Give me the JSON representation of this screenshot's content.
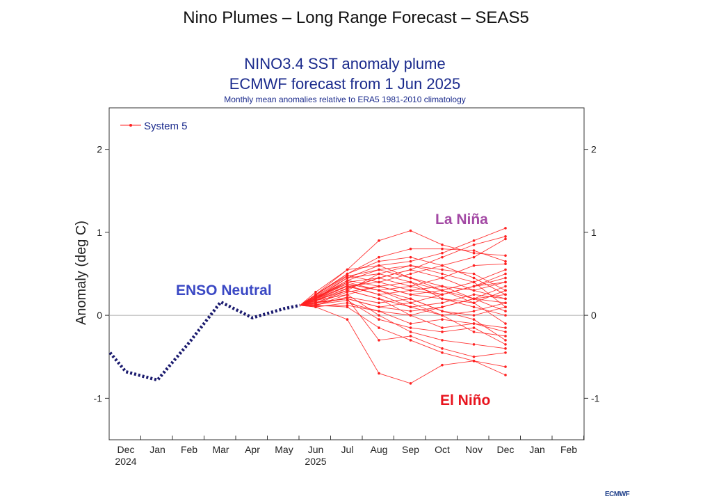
{
  "page": {
    "title": "Nino Plumes – Long Range Forecast – SEAS5",
    "logo": "ECMWF"
  },
  "chart_data": {
    "type": "line",
    "title": "NINO3.4 SST anomaly plume",
    "subtitle": "ECMWF forecast from 1 Jun 2025",
    "subsubtitle": "Monthly mean anomalies relative to ERA5 1981-2010 climatology",
    "ylabel": "Anomaly (deg C)",
    "ylim": [
      -1.5,
      2.5
    ],
    "yticks": [
      -1,
      0,
      1,
      2
    ],
    "ytick_labels": [
      "-1",
      "0",
      "1",
      "2"
    ],
    "x_categories": [
      "Dec",
      "Jan",
      "Feb",
      "Mar",
      "Apr",
      "May",
      "Jun",
      "Jul",
      "Aug",
      "Sep",
      "Oct",
      "Nov",
      "Dec",
      "Jan",
      "Feb"
    ],
    "x_years": [
      {
        "label": "2024",
        "at": "Dec"
      },
      {
        "label": "2025",
        "at": "Jun"
      }
    ],
    "legend": {
      "label": "System 5",
      "position": "top-left",
      "color": "#ff2020"
    },
    "observed": {
      "color": "#1a1a6e",
      "x": [
        "Nov 15",
        "Dec",
        "Jan",
        "Feb",
        "Mar",
        "Apr",
        "May",
        "May 15"
      ],
      "values": [
        -0.45,
        -0.68,
        -0.78,
        -0.33,
        0.16,
        -0.03,
        0.08,
        0.12
      ]
    },
    "forecast": {
      "color": "#ff2020",
      "start_value": 0.12,
      "months": [
        "Jun",
        "Jul",
        "Aug",
        "Sep",
        "Oct",
        "Nov",
        "Dec"
      ],
      "members": [
        [
          0.28,
          0.55,
          0.9,
          1.02,
          0.85,
          0.75,
          0.72
        ],
        [
          0.22,
          0.45,
          0.6,
          0.65,
          0.75,
          0.9,
          1.05
        ],
        [
          0.2,
          0.4,
          0.45,
          0.55,
          0.7,
          0.85,
          0.95
        ],
        [
          0.25,
          0.5,
          0.7,
          0.8,
          0.8,
          0.78,
          0.65
        ],
        [
          0.18,
          0.35,
          0.4,
          0.5,
          0.6,
          0.7,
          0.92
        ],
        [
          0.15,
          0.3,
          0.5,
          0.6,
          0.5,
          0.4,
          0.55
        ],
        [
          0.2,
          0.42,
          0.55,
          0.45,
          0.35,
          0.3,
          0.4
        ],
        [
          0.22,
          0.38,
          0.3,
          0.35,
          0.45,
          0.6,
          0.62
        ],
        [
          0.12,
          0.25,
          0.35,
          0.25,
          0.2,
          0.15,
          0.3
        ],
        [
          0.25,
          0.48,
          0.4,
          0.3,
          0.25,
          0.35,
          0.45
        ],
        [
          0.18,
          0.3,
          0.2,
          0.1,
          0.15,
          0.25,
          0.2
        ],
        [
          0.15,
          0.2,
          0.1,
          0.05,
          0.1,
          0.2,
          0.35
        ],
        [
          0.2,
          0.35,
          0.25,
          0.3,
          0.35,
          0.2,
          0.15
        ],
        [
          0.12,
          0.22,
          0.15,
          0.2,
          0.05,
          0.0,
          0.1
        ],
        [
          0.1,
          0.15,
          0.05,
          -0.1,
          -0.05,
          -0.1,
          -0.15
        ],
        [
          0.22,
          0.4,
          0.3,
          0.15,
          0.0,
          -0.2,
          -0.25
        ],
        [
          0.15,
          0.3,
          0.2,
          0.0,
          -0.15,
          -0.1,
          -0.2
        ],
        [
          0.18,
          0.25,
          0.0,
          -0.2,
          -0.3,
          -0.35,
          -0.4
        ],
        [
          0.12,
          0.1,
          -0.15,
          -0.3,
          -0.45,
          -0.55,
          -0.62
        ],
        [
          0.1,
          -0.05,
          -0.7,
          -0.82,
          -0.6,
          -0.55,
          -0.72
        ],
        [
          0.15,
          0.2,
          -0.3,
          -0.25,
          -0.4,
          -0.5,
          -0.45
        ],
        [
          0.2,
          0.45,
          0.5,
          0.4,
          0.2,
          0.1,
          0.0
        ],
        [
          0.25,
          0.55,
          0.6,
          0.45,
          0.3,
          0.15,
          -0.1
        ],
        [
          0.18,
          0.32,
          0.45,
          0.55,
          0.45,
          0.3,
          0.2
        ],
        [
          0.14,
          0.28,
          0.35,
          0.4,
          0.3,
          0.2,
          0.05
        ],
        [
          0.16,
          0.2,
          0.1,
          0.15,
          0.25,
          0.35,
          0.5
        ],
        [
          0.24,
          0.5,
          0.65,
          0.7,
          0.6,
          0.45,
          0.25
        ],
        [
          0.2,
          0.38,
          0.3,
          0.2,
          0.05,
          -0.05,
          -0.3
        ],
        [
          0.13,
          0.18,
          -0.05,
          -0.15,
          -0.2,
          -0.15,
          -0.35
        ],
        [
          0.21,
          0.42,
          0.35,
          0.25,
          0.3,
          0.4,
          0.1
        ],
        [
          0.19,
          0.36,
          0.25,
          0.1,
          0.0,
          0.05,
          0.15
        ],
        [
          0.17,
          0.33,
          0.45,
          0.35,
          0.25,
          0.35,
          0.4
        ],
        [
          0.11,
          0.12,
          0.05,
          0.0,
          0.1,
          0.2,
          0.25
        ],
        [
          0.23,
          0.47,
          0.55,
          0.6,
          0.55,
          0.5,
          0.3
        ]
      ]
    },
    "annotations": [
      {
        "text": "ENSO Neutral",
        "color": "#3a48c4"
      },
      {
        "text": "La Niña",
        "color": "#a349a4"
      },
      {
        "text": "El Niño",
        "color": "#e8141e"
      }
    ]
  }
}
